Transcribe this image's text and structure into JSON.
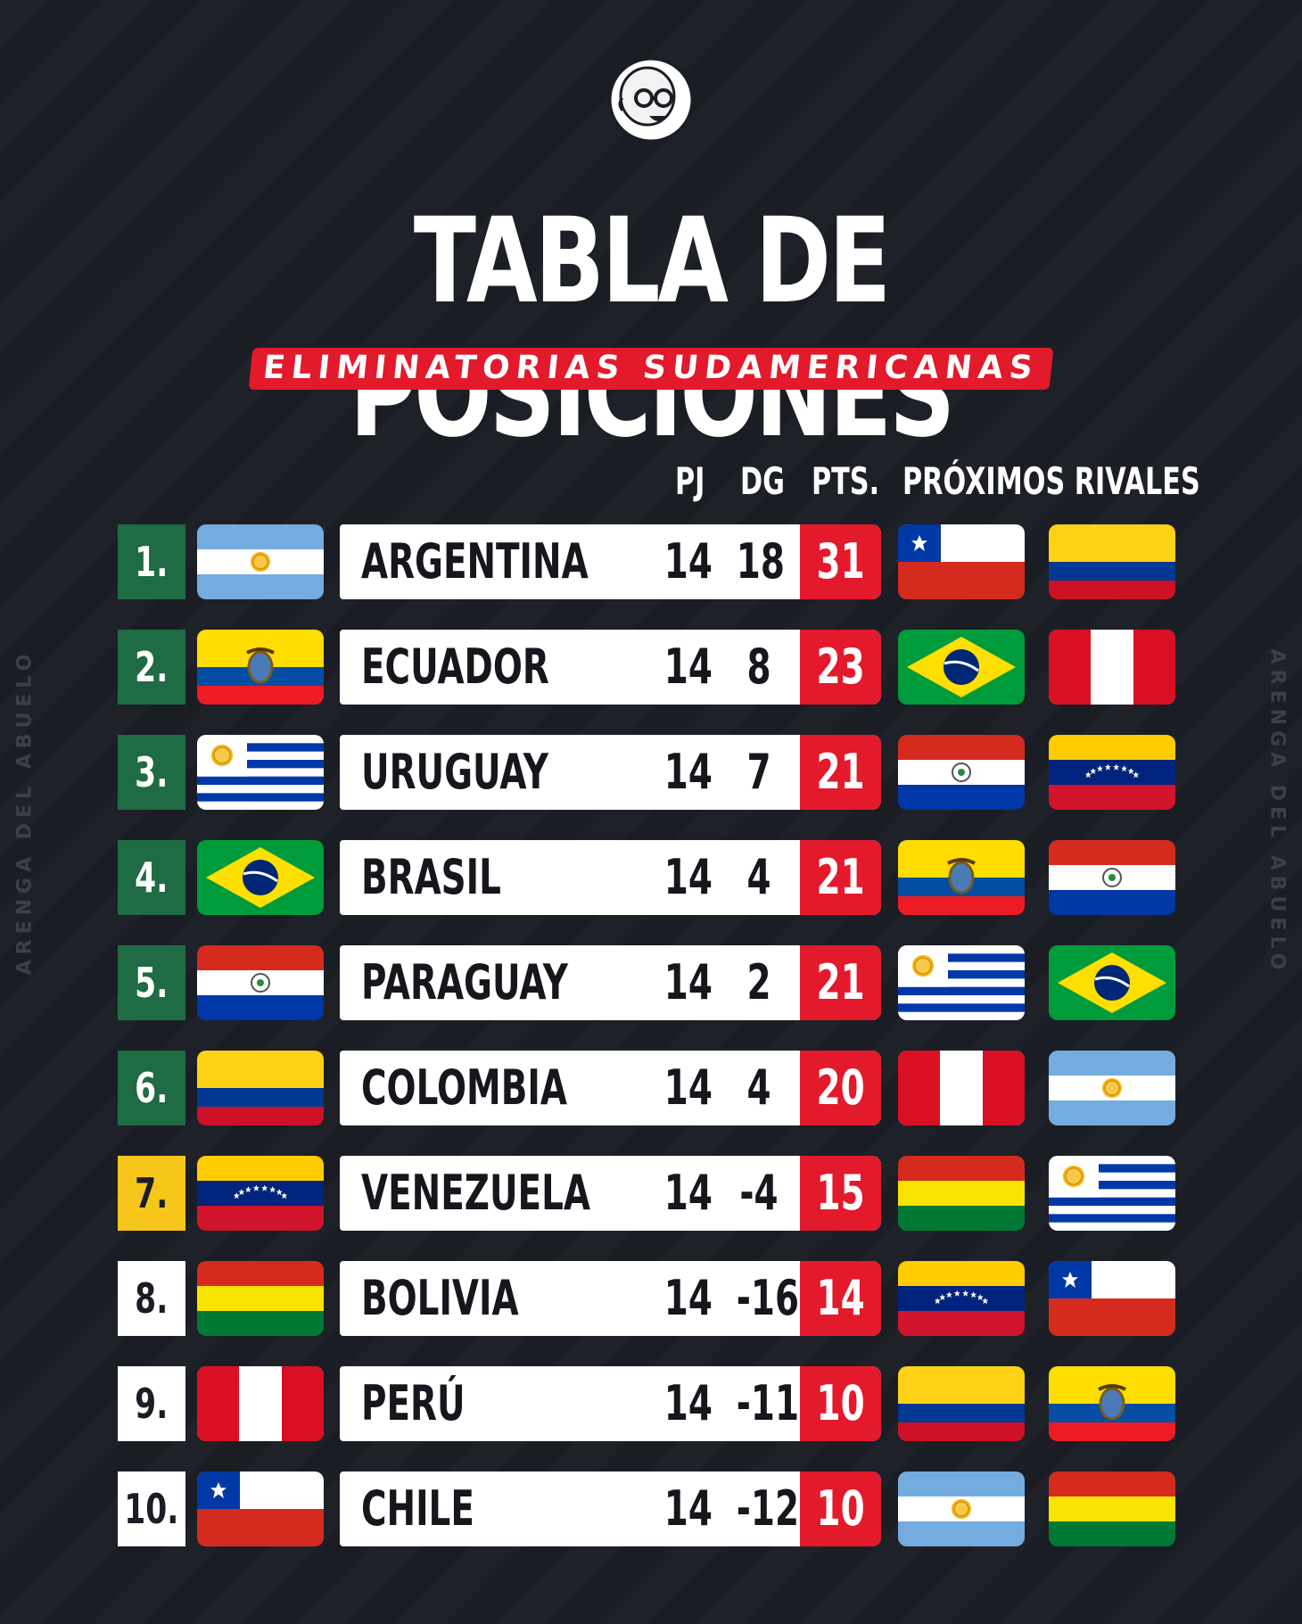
{
  "brand": {
    "watermark": "ARENGA DEL ABUELO",
    "logo": "abuelo-mascot-logo"
  },
  "header": {
    "title": "TABLA DE POSICIONES",
    "subtitle": "ELIMINATORIAS SUDAMERICANAS"
  },
  "columns": {
    "pj": "PJ",
    "dg": "DG",
    "pts": "PTS.",
    "rivals": "PRÓXIMOS RIVALES"
  },
  "colors": {
    "background": "#1a1d24",
    "accent_red": "#e3192c",
    "qualify_green": "#1f6b43",
    "playoff_yellow": "#f6c61b"
  },
  "standings": [
    {
      "pos": "1.",
      "zone": "green",
      "team": "ARGENTINA",
      "flag": "argentina",
      "pj": "14",
      "dg": "18",
      "pts": "31",
      "rivals": [
        "chile",
        "colombia"
      ]
    },
    {
      "pos": "2.",
      "zone": "green",
      "team": "ECUADOR",
      "flag": "ecuador",
      "pj": "14",
      "dg": "8",
      "pts": "23",
      "rivals": [
        "brasil",
        "peru"
      ]
    },
    {
      "pos": "3.",
      "zone": "green",
      "team": "URUGUAY",
      "flag": "uruguay",
      "pj": "14",
      "dg": "7",
      "pts": "21",
      "rivals": [
        "paraguay",
        "venezuela"
      ]
    },
    {
      "pos": "4.",
      "zone": "green",
      "team": "BRASIL",
      "flag": "brasil",
      "pj": "14",
      "dg": "4",
      "pts": "21",
      "rivals": [
        "ecuador",
        "paraguay"
      ]
    },
    {
      "pos": "5.",
      "zone": "green",
      "team": "PARAGUAY",
      "flag": "paraguay",
      "pj": "14",
      "dg": "2",
      "pts": "21",
      "rivals": [
        "uruguay",
        "brasil"
      ]
    },
    {
      "pos": "6.",
      "zone": "green",
      "team": "COLOMBIA",
      "flag": "colombia",
      "pj": "14",
      "dg": "4",
      "pts": "20",
      "rivals": [
        "peru",
        "argentina"
      ]
    },
    {
      "pos": "7.",
      "zone": "yellow",
      "team": "VENEZUELA",
      "flag": "venezuela",
      "pj": "14",
      "dg": "-4",
      "pts": "15",
      "rivals": [
        "bolivia",
        "uruguay"
      ]
    },
    {
      "pos": "8.",
      "zone": "white",
      "team": "BOLIVIA",
      "flag": "bolivia",
      "pj": "14",
      "dg": "-16",
      "pts": "14",
      "rivals": [
        "venezuela",
        "chile"
      ]
    },
    {
      "pos": "9.",
      "zone": "white",
      "team": "PERÚ",
      "flag": "peru",
      "pj": "14",
      "dg": "-11",
      "pts": "10",
      "rivals": [
        "colombia",
        "ecuador"
      ]
    },
    {
      "pos": "10.",
      "zone": "white",
      "team": "CHILE",
      "flag": "chile",
      "pj": "14",
      "dg": "-12",
      "pts": "10",
      "rivals": [
        "argentina",
        "bolivia"
      ]
    }
  ]
}
